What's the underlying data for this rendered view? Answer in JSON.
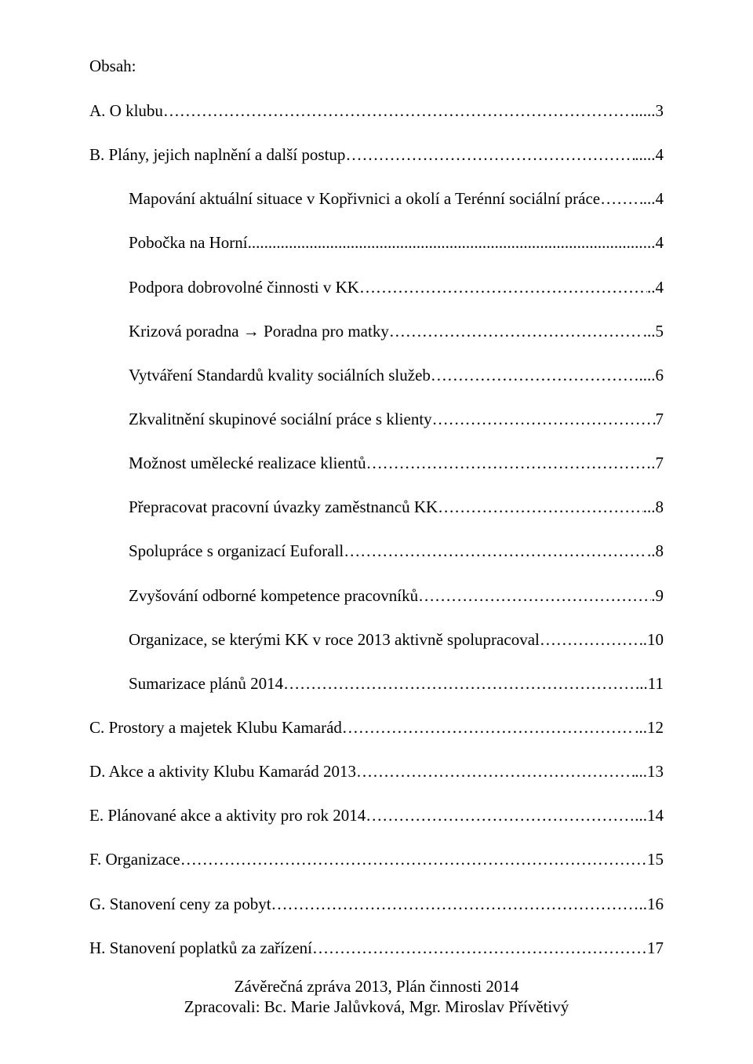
{
  "title": "Obsah:",
  "sections": [
    {
      "type": "head",
      "label": "A. O klubu",
      "fill": "dots",
      "sep": "..",
      "page": "...3"
    },
    {
      "type": "head",
      "label": "B. Plány, jejich naplnění a další postup",
      "fill": "dots",
      "sep": ".",
      "page": "....4"
    },
    {
      "type": "item",
      "label": "Mapování aktuální situace v Kopřivnici a okolí a Terénní sociální práce",
      "fill": "dots",
      "sep": ".",
      "page": "..4"
    },
    {
      "type": "item",
      "label": "Pobočka na Horní",
      "fill": "dots-tight",
      "sep": "",
      "page": "...4"
    },
    {
      "type": "item",
      "label": "Podpora dobrovolné činnosti v KK",
      "fill": "dots",
      "sep": "",
      "page": "..4"
    },
    {
      "type": "item",
      "label": "Krizová poradna → Poradna pro matky",
      "fill": "dots",
      "sep": "",
      "page": "...5"
    },
    {
      "type": "item",
      "label": "Vytváření Standardů kvality sociálních služeb",
      "fill": "dots",
      "sep": "..",
      "page": "..6"
    },
    {
      "type": "item",
      "label": "Zkvalitnění skupinové sociální práce s klienty",
      "fill": "dots",
      "sep": "",
      "page": "7"
    },
    {
      "type": "item",
      "label": "Možnost umělecké realizace klientů",
      "fill": "dots",
      "sep": "",
      "page": ".7"
    },
    {
      "type": "item",
      "label": "Přepracovat pracovní úvazky zaměstnanců KK",
      "fill": "dots",
      "sep": "",
      "page": "...8"
    },
    {
      "type": "item",
      "label": "Spolupráce s organizací Euforall",
      "fill": "dots",
      "sep": "",
      "page": "..8"
    },
    {
      "type": "item",
      "label": "Zvyšování odborné kompetence pracovníků",
      "fill": "dots",
      "sep": "",
      "page": ".9"
    },
    {
      "type": "item",
      "label": "Organizace, se kterými KK v roce 2013 aktivně spolupracoval",
      "fill": "dots",
      "sep": "",
      "page": ".10"
    },
    {
      "type": "item",
      "label": "Sumarizace plánů 2014",
      "fill": "dots",
      "sep": "",
      "page": "...11"
    },
    {
      "type": "head",
      "label": "C. Prostory a majetek Klubu Kamarád",
      "fill": "dots",
      "sep": "",
      "page": "...12"
    },
    {
      "type": "head",
      "label": "D. Akce a aktivity Klubu Kamarád 2013",
      "fill": "dots",
      "sep": "",
      "page": "...13"
    },
    {
      "type": "head",
      "label": "E. Plánované akce a aktivity pro rok 2014",
      "fill": "dots",
      "sep": "",
      "page": "...14"
    },
    {
      "type": "head",
      "label": "F. Organizace",
      "fill": "dots",
      "sep": "",
      "page": "15"
    },
    {
      "type": "head",
      "label": "G. Stanovení ceny za pobyt",
      "fill": "dots",
      "sep": "",
      "page": "..16"
    },
    {
      "type": "head",
      "label": "H. Stanovení poplatků za zařízení",
      "fill": "dots",
      "sep": "",
      "page": "17"
    }
  ],
  "footer": {
    "line1": "Závěrečná zpráva 2013, Plán činnosti 2014",
    "line2": "Zpracovali: Bc. Marie Jalůvková, Mgr. Miroslav Přívětivý"
  },
  "colors": {
    "text": "#000000",
    "background": "#ffffff"
  }
}
